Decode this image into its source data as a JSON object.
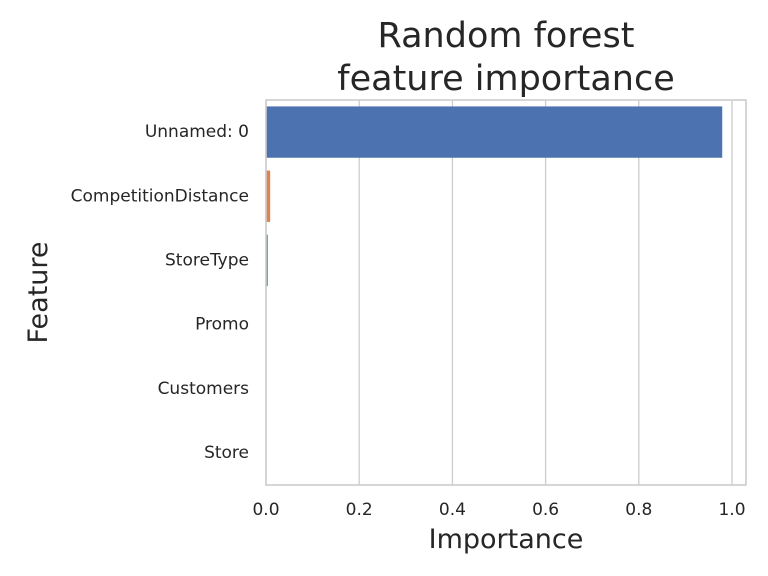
{
  "chart_data": {
    "type": "bar",
    "orientation": "horizontal",
    "title": [
      "Random forest",
      "feature importance"
    ],
    "xlabel": "Importance",
    "ylabel": "Feature",
    "categories": [
      "Unnamed: 0",
      "CompetitionDistance",
      "StoreType",
      "Promo",
      "Customers",
      "Store"
    ],
    "values": [
      0.979,
      0.009,
      0.004,
      0.0005,
      0.0003,
      0.0002
    ],
    "colors": [
      "#4c72b0",
      "#dd8452",
      "#55a868",
      "#c44e52",
      "#8172b3",
      "#937860"
    ],
    "xlim": [
      0,
      1.03
    ],
    "xticks": [
      0.0,
      0.2,
      0.4,
      0.6,
      0.8,
      1.0
    ],
    "xtick_labels": [
      "0.0",
      "0.2",
      "0.4",
      "0.6",
      "0.8",
      "1.0"
    ],
    "grid": "vertical",
    "legend": "none"
  }
}
